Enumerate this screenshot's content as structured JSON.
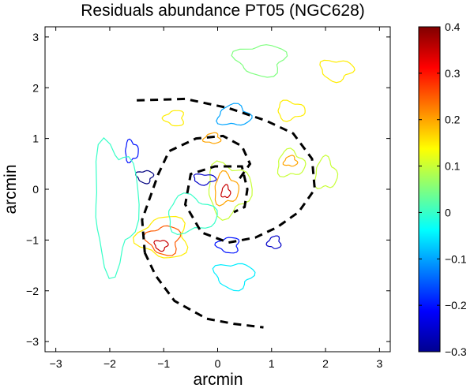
{
  "chart_data": {
    "type": "contour",
    "title": "Residuals abundance PT05 (NGC628)",
    "xlabel": "arcmin",
    "ylabel": "arcmin",
    "xlim": [
      -3.2,
      3.2
    ],
    "ylim": [
      -3.2,
      3.2
    ],
    "xticks": [
      "-3",
      "-2",
      "-1",
      "0",
      "1",
      "2",
      "3"
    ],
    "yticks": [
      "3",
      "2",
      "1",
      "0",
      "-1",
      "-2",
      "-3"
    ],
    "colorbar": {
      "range": [
        -0.3,
        0.4
      ],
      "colormap": "jet",
      "ticks": [
        "0.4",
        "0.3",
        "0.2",
        "0.1",
        "0",
        "-0.1",
        "-0.2",
        "-0.3"
      ]
    },
    "grid": false,
    "contours": [
      {
        "level": 0.35,
        "x": 0.15,
        "y": -0.05,
        "rx": 0.08,
        "ry": 0.12
      },
      {
        "level": 0.2,
        "x": 0.15,
        "y": 0.0,
        "rx": 0.22,
        "ry": 0.3
      },
      {
        "level": 0.1,
        "x": 0.2,
        "y": 0.0,
        "rx": 0.4,
        "ry": 0.5
      },
      {
        "level": 0.35,
        "x": -1.05,
        "y": -1.1,
        "rx": 0.12,
        "ry": 0.1
      },
      {
        "level": 0.25,
        "x": -1.0,
        "y": -1.0,
        "rx": 0.3,
        "ry": 0.28
      },
      {
        "level": 0.15,
        "x": -1.0,
        "y": -0.95,
        "rx": 0.45,
        "ry": 0.4
      },
      {
        "level": 0.2,
        "x": 1.35,
        "y": 0.55,
        "rx": 0.12,
        "ry": 0.1
      },
      {
        "level": 0.1,
        "x": 1.35,
        "y": 0.5,
        "rx": 0.25,
        "ry": 0.25
      },
      {
        "level": 0.15,
        "x": 1.35,
        "y": 1.55,
        "rx": 0.25,
        "ry": 0.18
      },
      {
        "level": 0.15,
        "x": 2.2,
        "y": 2.35,
        "rx": 0.3,
        "ry": 0.2
      },
      {
        "level": 0.05,
        "x": 0.8,
        "y": 2.55,
        "rx": 0.45,
        "ry": 0.3
      },
      {
        "level": 0.15,
        "x": -0.8,
        "y": 1.4,
        "rx": 0.18,
        "ry": 0.15
      },
      {
        "level": 0.2,
        "x": -0.1,
        "y": 1.0,
        "rx": 0.15,
        "ry": 0.1
      },
      {
        "level": 0.1,
        "x": 2.0,
        "y": 0.3,
        "rx": 0.2,
        "ry": 0.3
      },
      {
        "level": -0.2,
        "x": -1.6,
        "y": 0.75,
        "rx": 0.12,
        "ry": 0.2
      },
      {
        "level": -0.25,
        "x": -0.25,
        "y": 0.2,
        "rx": 0.2,
        "ry": 0.1
      },
      {
        "level": -0.3,
        "x": -1.35,
        "y": 0.25,
        "rx": 0.15,
        "ry": 0.12
      },
      {
        "level": -0.2,
        "x": 0.2,
        "y": -1.1,
        "rx": 0.2,
        "ry": 0.15
      },
      {
        "level": -0.25,
        "x": 1.05,
        "y": -1.05,
        "rx": 0.12,
        "ry": 0.12
      },
      {
        "level": -0.1,
        "x": 0.3,
        "y": 1.45,
        "rx": 0.3,
        "ry": 0.2
      },
      {
        "level": 0.0,
        "x": -0.5,
        "y": -0.5,
        "rx": 0.45,
        "ry": 0.35
      },
      {
        "level": 0.0,
        "x": -1.9,
        "y": -0.3,
        "rx": 0.4,
        "ry": 1.2
      },
      {
        "level": -0.05,
        "x": 0.3,
        "y": -1.7,
        "rx": 0.35,
        "ry": 0.25
      }
    ],
    "overlay": [
      {
        "style": "dashed",
        "color": "#000000",
        "points": [
          [
            -1.5,
            1.75
          ],
          [
            -0.6,
            1.78
          ],
          [
            0.2,
            1.6
          ],
          [
            0.9,
            1.35
          ],
          [
            1.4,
            1.1
          ],
          [
            1.75,
            0.6
          ],
          [
            1.8,
            0.0
          ],
          [
            1.5,
            -0.45
          ],
          [
            1.1,
            -0.75
          ],
          [
            0.7,
            -0.95
          ],
          [
            0.2,
            -1.05
          ],
          [
            -0.3,
            -0.85
          ],
          [
            -0.6,
            -0.3
          ],
          [
            -0.5,
            0.3
          ],
          [
            -0.05,
            0.45
          ],
          [
            0.45,
            0.45
          ],
          [
            0.55,
            0.0
          ],
          [
            0.5,
            -0.35
          ],
          [
            0.3,
            -0.45
          ]
        ]
      },
      {
        "style": "dashed",
        "color": "#000000",
        "points": [
          [
            -1.35,
            -1.25
          ],
          [
            -1.15,
            -1.7
          ],
          [
            -0.8,
            -2.2
          ],
          [
            -0.2,
            -2.55
          ],
          [
            0.3,
            -2.65
          ],
          [
            0.85,
            -2.72
          ]
        ]
      },
      {
        "style": "dashed",
        "color": "#000000",
        "points": [
          [
            -1.35,
            -1.25
          ],
          [
            -1.4,
            -0.6
          ],
          [
            -1.1,
            0.3
          ],
          [
            -0.9,
            0.75
          ],
          [
            -0.4,
            1.0
          ],
          [
            0.1,
            1.05
          ],
          [
            0.45,
            0.85
          ],
          [
            0.6,
            0.5
          ],
          [
            0.4,
            0.2
          ]
        ]
      }
    ]
  }
}
